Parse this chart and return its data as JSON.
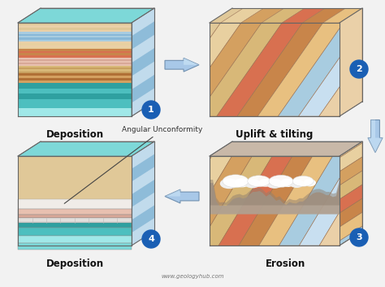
{
  "background_color": "#f2f2f2",
  "labels": {
    "box1": "Deposition",
    "box2": "Uplift & tilting",
    "box3": "Erosion",
    "box4": "Deposition",
    "annotation": "Angular Unconformity",
    "watermark": "www.geologyhub.com"
  },
  "numbers": {
    "n1": "1",
    "n2": "2",
    "n3": "3",
    "n4": "4"
  },
  "number_color": "#1a5fb4",
  "arrow_color_light": "#a8c8e8",
  "arrow_color_mid": "#5a9fd4",
  "arrow_color_dark": "#3070a0",
  "label_fontsize": 8.5,
  "colors": {
    "teal1": "#4dbfbf",
    "teal2": "#2fa0a0",
    "teal3": "#7dd8d8",
    "teal4": "#a0e8e8",
    "brown1": "#c8854a",
    "brown2": "#b07035",
    "brown3": "#d4a060",
    "brown4": "#e8c080",
    "brown5": "#a06030",
    "tan1": "#d8b878",
    "tan2": "#c8a060",
    "tan3": "#e8d0a0",
    "red1": "#c05030",
    "red2": "#d87050",
    "sand1": "#e0c898",
    "sand2": "#ead0a8",
    "blue1": "#88b8d8",
    "blue2": "#a8cce0",
    "blue3": "#c8dff0",
    "gray1": "#b0a090",
    "gray2": "#c8b8a8",
    "gray3": "#908070",
    "pink1": "#e8c0b0",
    "pink2": "#d8a898",
    "white1": "#f0ece8",
    "brick1": "#c89060",
    "brick2": "#b87840"
  }
}
